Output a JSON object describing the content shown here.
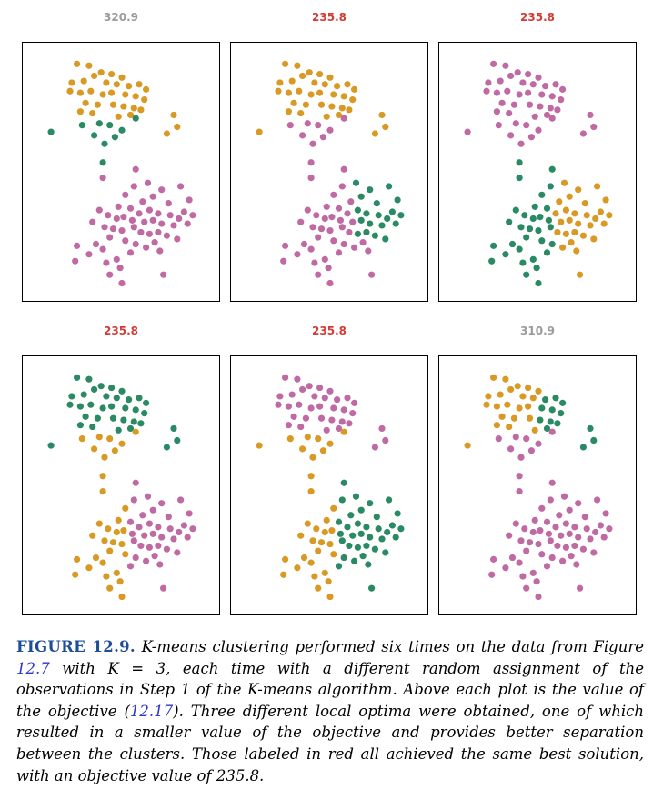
{
  "colors": {
    "cluster_a": "#c06aa4",
    "cluster_b": "#d89a25",
    "cluster_c": "#2a8a64",
    "best_title": "#d23c36",
    "worse_title": "#9b9b9b",
    "figure_label": "#1f4e99",
    "reference_link": "#2f36c9"
  },
  "chart_data": {
    "type": "scatter",
    "xlim": [
      0,
      10
    ],
    "ylim": [
      0,
      12
    ],
    "axes_visible": false,
    "panels": [
      {
        "title": "320.9",
        "best": false,
        "labels": {
          "top": "b",
          "mid": "c",
          "bot": "a",
          "outlier_left": "c",
          "outlier_right": "b"
        }
      },
      {
        "title": "235.8",
        "best": true,
        "labels": {
          "top": "b",
          "mid": "a",
          "bot": "c",
          "outlier_left": "b",
          "outlier_right": "b"
        }
      },
      {
        "title": "235.8",
        "best": true,
        "labels": {
          "top": "a",
          "mid": "a",
          "bot": "b",
          "outlier_left": "a",
          "outlier_right": "a",
          "split": true
        }
      },
      {
        "title": "235.8",
        "best": true,
        "labels": {
          "top": "c",
          "mid": "b",
          "bot": "a",
          "outlier_left": "c",
          "outlier_right": "c"
        }
      },
      {
        "title": "235.8",
        "best": true,
        "labels": {
          "top": "a",
          "mid": "b",
          "bot": "c",
          "outlier_left": "b",
          "outlier_right": "a"
        }
      },
      {
        "title": "310.9",
        "best": false,
        "labels": {
          "top": "b",
          "mid": "a",
          "bot": "a",
          "outlier_left": "b",
          "outlier_right": "c",
          "top_right": "c"
        }
      }
    ],
    "points": {
      "top": [
        [
          2.4,
          11.1
        ],
        [
          3.1,
          11.0
        ],
        [
          3.8,
          10.6
        ],
        [
          4.4,
          10.5
        ],
        [
          5.0,
          10.3
        ],
        [
          2.1,
          10.0
        ],
        [
          2.8,
          10.1
        ],
        [
          3.4,
          10.4
        ],
        [
          4.1,
          10.0
        ],
        [
          4.7,
          9.9
        ],
        [
          5.4,
          9.8
        ],
        [
          6.0,
          9.9
        ],
        [
          6.4,
          9.6
        ],
        [
          2.0,
          9.5
        ],
        [
          2.6,
          9.4
        ],
        [
          3.2,
          9.5
        ],
        [
          3.9,
          9.3
        ],
        [
          4.4,
          9.4
        ],
        [
          5.2,
          9.3
        ],
        [
          5.8,
          9.2
        ],
        [
          6.3,
          9.0
        ],
        [
          2.9,
          8.8
        ],
        [
          3.6,
          8.7
        ],
        [
          4.5,
          8.7
        ],
        [
          5.1,
          8.6
        ],
        [
          5.7,
          8.5
        ],
        [
          6.1,
          8.4
        ],
        [
          3.3,
          8.2
        ],
        [
          4.8,
          8.0
        ],
        [
          5.5,
          8.1
        ],
        [
          2.6,
          8.3
        ]
      ],
      "mid": [
        [
          3.7,
          7.6
        ],
        [
          4.3,
          7.5
        ],
        [
          5.0,
          7.2
        ],
        [
          5.8,
          7.9
        ],
        [
          4.6,
          6.8
        ],
        [
          3.4,
          6.9
        ],
        [
          2.7,
          7.5
        ],
        [
          4.0,
          6.4
        ],
        [
          3.9,
          5.3
        ]
      ],
      "outlier_left": [
        [
          0.9,
          7.1
        ]
      ],
      "outlier_right": [
        [
          8.0,
          8.1
        ],
        [
          8.2,
          7.4
        ],
        [
          7.6,
          7.0
        ]
      ],
      "bot": [
        [
          3.9,
          4.4
        ],
        [
          5.8,
          4.9
        ],
        [
          5.7,
          3.9
        ],
        [
          6.5,
          4.1
        ],
        [
          5.2,
          3.4
        ],
        [
          6.8,
          3.3
        ],
        [
          7.3,
          3.7
        ],
        [
          8.4,
          3.9
        ],
        [
          8.9,
          3.1
        ],
        [
          6.2,
          3.0
        ],
        [
          7.7,
          2.9
        ],
        [
          8.6,
          2.4
        ],
        [
          4.8,
          2.7
        ],
        [
          5.5,
          2.6
        ],
        [
          6.0,
          2.3
        ],
        [
          6.6,
          2.5
        ],
        [
          7.1,
          2.3
        ],
        [
          7.8,
          2.2
        ],
        [
          8.3,
          2.0
        ],
        [
          9.1,
          2.2
        ],
        [
          3.7,
          2.5
        ],
        [
          4.2,
          2.2
        ],
        [
          4.7,
          2.0
        ],
        [
          5.1,
          2.1
        ],
        [
          5.6,
          1.9
        ],
        [
          6.3,
          1.8
        ],
        [
          6.8,
          1.9
        ],
        [
          7.3,
          1.7
        ],
        [
          8.0,
          1.6
        ],
        [
          8.8,
          1.7
        ],
        [
          3.3,
          1.8
        ],
        [
          4.0,
          1.5
        ],
        [
          4.5,
          1.4
        ],
        [
          5.0,
          1.3
        ],
        [
          5.7,
          1.5
        ],
        [
          6.1,
          1.2
        ],
        [
          6.6,
          1.1
        ],
        [
          7.1,
          1.2
        ],
        [
          7.6,
          1.0
        ],
        [
          4.3,
          0.9
        ],
        [
          5.2,
          0.7
        ],
        [
          5.8,
          0.5
        ],
        [
          6.9,
          0.6
        ],
        [
          8.2,
          0.8
        ],
        [
          2.4,
          0.4
        ],
        [
          3.9,
          0.2
        ],
        [
          5.5,
          0.0
        ],
        [
          7.2,
          0.1
        ],
        [
          4.7,
          -0.4
        ],
        [
          3.1,
          -0.1
        ],
        [
          4.9,
          -0.9
        ],
        [
          4.3,
          -1.3
        ],
        [
          5.0,
          -1.8
        ],
        [
          7.4,
          -1.3
        ],
        [
          2.3,
          -0.5
        ],
        [
          3.5,
          0.5
        ],
        [
          6.4,
          0.3
        ],
        [
          4.1,
          -0.6
        ]
      ]
    }
  },
  "caption": {
    "figure_label": "FIGURE 12.9.",
    "t1": " K-means clustering performed six times on the data from Figure ",
    "ref1": "12.7",
    "t2": " with K = 3, each time with a different random assignment of the observations in Step 1 of the K-means algorithm. Above each plot is the value of the objective (",
    "ref2": "12.17",
    "t3": "). Three different local optima were obtained, one of which resulted in a smaller value of the objective and provides better separation between the clusters. Those labeled in red all achieved the same best solution, with an objective value of 235.8."
  }
}
